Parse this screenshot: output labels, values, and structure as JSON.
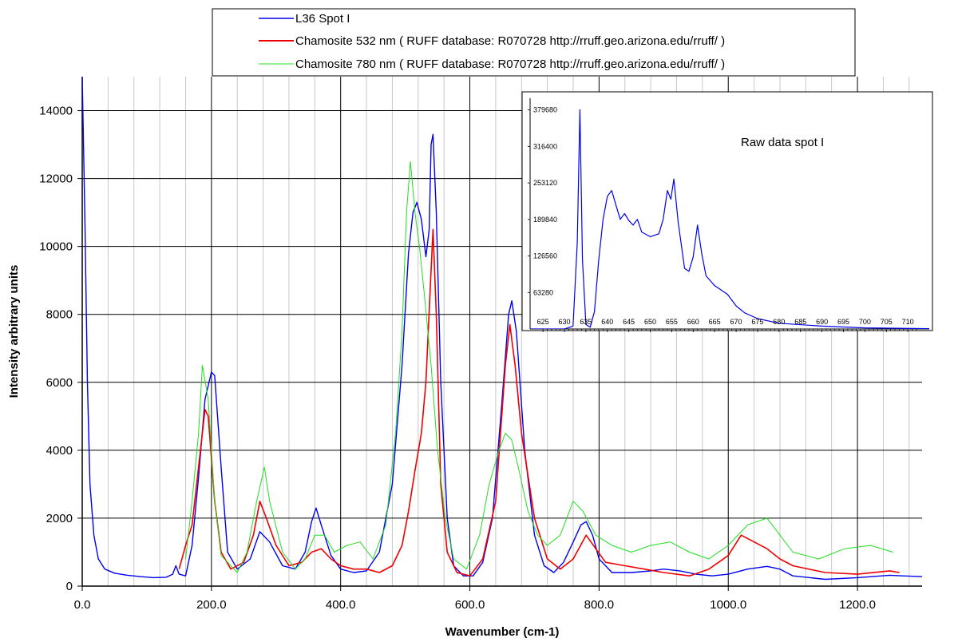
{
  "chart_data": [
    {
      "type": "line",
      "xlabel": "Wavenumber (cm-1)",
      "ylabel": "Intensity arbitrary units",
      "xlim": [
        0,
        1300
      ],
      "ylim": [
        0,
        15000
      ],
      "x_ticks": [
        0,
        200,
        400,
        600,
        800,
        1000,
        1200
      ],
      "x_tick_labels": [
        "0.0",
        "200.0",
        "400.0",
        "600.0",
        "800.0",
        "1000.0",
        "1200.0"
      ],
      "y_ticks": [
        0,
        2000,
        4000,
        6000,
        8000,
        10000,
        12000,
        14000
      ],
      "y_tick_labels": [
        "0",
        "2000",
        "4000",
        "6000",
        "8000",
        "10000",
        "12000",
        "14000"
      ],
      "grid": true,
      "legend_position": "top",
      "series": [
        {
          "name": "L36 Spot I",
          "color": "#0000ee",
          "points": [
            [
              0,
              15000
            ],
            [
              4,
              11000
            ],
            [
              8,
              6000
            ],
            [
              12,
              3000
            ],
            [
              18,
              1500
            ],
            [
              25,
              800
            ],
            [
              35,
              500
            ],
            [
              50,
              380
            ],
            [
              70,
              320
            ],
            [
              90,
              280
            ],
            [
              110,
              250
            ],
            [
              130,
              260
            ],
            [
              140,
              350
            ],
            [
              145,
              600
            ],
            [
              150,
              350
            ],
            [
              160,
              300
            ],
            [
              170,
              1200
            ],
            [
              180,
              3200
            ],
            [
              190,
              5500
            ],
            [
              200,
              6300
            ],
            [
              205,
              6200
            ],
            [
              215,
              3500
            ],
            [
              225,
              1000
            ],
            [
              240,
              500
            ],
            [
              260,
              800
            ],
            [
              275,
              1600
            ],
            [
              290,
              1300
            ],
            [
              310,
              600
            ],
            [
              330,
              500
            ],
            [
              345,
              1000
            ],
            [
              355,
              1900
            ],
            [
              362,
              2300
            ],
            [
              370,
              1800
            ],
            [
              385,
              900
            ],
            [
              400,
              500
            ],
            [
              420,
              400
            ],
            [
              440,
              450
            ],
            [
              460,
              1000
            ],
            [
              480,
              3000
            ],
            [
              495,
              6500
            ],
            [
              505,
              9800
            ],
            [
              512,
              11000
            ],
            [
              518,
              11300
            ],
            [
              525,
              10800
            ],
            [
              532,
              9700
            ],
            [
              537,
              10500
            ],
            [
              540,
              13000
            ],
            [
              543,
              13300
            ],
            [
              548,
              11000
            ],
            [
              555,
              6000
            ],
            [
              565,
              2000
            ],
            [
              575,
              600
            ],
            [
              590,
              300
            ],
            [
              605,
              300
            ],
            [
              620,
              700
            ],
            [
              635,
              2000
            ],
            [
              650,
              5500
            ],
            [
              660,
              8000
            ],
            [
              665,
              8400
            ],
            [
              672,
              7500
            ],
            [
              685,
              4000
            ],
            [
              700,
              1500
            ],
            [
              715,
              600
            ],
            [
              730,
              400
            ],
            [
              745,
              700
            ],
            [
              760,
              1300
            ],
            [
              772,
              1800
            ],
            [
              780,
              1900
            ],
            [
              790,
              1500
            ],
            [
              800,
              800
            ],
            [
              820,
              400
            ],
            [
              850,
              400
            ],
            [
              880,
              450
            ],
            [
              900,
              500
            ],
            [
              925,
              450
            ],
            [
              950,
              350
            ],
            [
              975,
              300
            ],
            [
              1000,
              350
            ],
            [
              1030,
              500
            ],
            [
              1060,
              580
            ],
            [
              1080,
              500
            ],
            [
              1100,
              300
            ],
            [
              1150,
              200
            ],
            [
              1200,
              250
            ],
            [
              1250,
              320
            ],
            [
              1270,
              300
            ],
            [
              1300,
              280
            ]
          ]
        },
        {
          "name": "Chamosite 532 nm ( RUFF database: R070728  http://rruff.geo.arizona.edu/rruff/ )",
          "color": "#ee0000",
          "points": [
            [
              150,
              500
            ],
            [
              160,
              1200
            ],
            [
              170,
              1800
            ],
            [
              180,
              3500
            ],
            [
              190,
              5200
            ],
            [
              195,
              5000
            ],
            [
              205,
              2500
            ],
            [
              215,
              1000
            ],
            [
              230,
              500
            ],
            [
              250,
              700
            ],
            [
              265,
              1500
            ],
            [
              275,
              2500
            ],
            [
              285,
              2000
            ],
            [
              300,
              1200
            ],
            [
              320,
              600
            ],
            [
              340,
              700
            ],
            [
              355,
              1000
            ],
            [
              370,
              1100
            ],
            [
              385,
              800
            ],
            [
              400,
              600
            ],
            [
              420,
              500
            ],
            [
              440,
              500
            ],
            [
              460,
              400
            ],
            [
              480,
              600
            ],
            [
              495,
              1200
            ],
            [
              505,
              2200
            ],
            [
              515,
              3400
            ],
            [
              525,
              4500
            ],
            [
              532,
              6000
            ],
            [
              538,
              8500
            ],
            [
              543,
              10500
            ],
            [
              548,
              8000
            ],
            [
              555,
              3000
            ],
            [
              565,
              1000
            ],
            [
              580,
              400
            ],
            [
              600,
              300
            ],
            [
              620,
              800
            ],
            [
              640,
              2500
            ],
            [
              655,
              6500
            ],
            [
              662,
              7700
            ],
            [
              670,
              6500
            ],
            [
              680,
              4500
            ],
            [
              700,
              2000
            ],
            [
              720,
              800
            ],
            [
              740,
              500
            ],
            [
              760,
              800
            ],
            [
              780,
              1500
            ],
            [
              795,
              1100
            ],
            [
              810,
              700
            ],
            [
              840,
              600
            ],
            [
              870,
              500
            ],
            [
              900,
              400
            ],
            [
              940,
              300
            ],
            [
              970,
              500
            ],
            [
              1000,
              900
            ],
            [
              1020,
              1500
            ],
            [
              1040,
              1300
            ],
            [
              1060,
              1100
            ],
            [
              1080,
              800
            ],
            [
              1100,
              600
            ],
            [
              1150,
              400
            ],
            [
              1200,
              350
            ],
            [
              1250,
              450
            ],
            [
              1265,
              400
            ]
          ]
        },
        {
          "name": "Chamosite 780 nm ( RUFF database: R070728  http://rruff.geo.arizona.edu/rruff/ )",
          "color": "#22dd22",
          "points": [
            [
              160,
              800
            ],
            [
              170,
              2500
            ],
            [
              180,
              4500
            ],
            [
              186,
              6500
            ],
            [
              195,
              5500
            ],
            [
              205,
              2500
            ],
            [
              215,
              900
            ],
            [
              240,
              400
            ],
            [
              255,
              1000
            ],
            [
              270,
              2500
            ],
            [
              282,
              3500
            ],
            [
              290,
              2500
            ],
            [
              310,
              1000
            ],
            [
              330,
              500
            ],
            [
              345,
              800
            ],
            [
              360,
              1500
            ],
            [
              375,
              1500
            ],
            [
              390,
              1000
            ],
            [
              410,
              1200
            ],
            [
              430,
              1300
            ],
            [
              450,
              800
            ],
            [
              470,
              1800
            ],
            [
              485,
              4500
            ],
            [
              495,
              7500
            ],
            [
              502,
              11000
            ],
            [
              508,
              12500
            ],
            [
              515,
              11000
            ],
            [
              522,
              10000
            ],
            [
              530,
              8500
            ],
            [
              540,
              6500
            ],
            [
              550,
              4000
            ],
            [
              562,
              2000
            ],
            [
              575,
              800
            ],
            [
              595,
              500
            ],
            [
              615,
              1500
            ],
            [
              630,
              3000
            ],
            [
              645,
              4000
            ],
            [
              655,
              4500
            ],
            [
              665,
              4300
            ],
            [
              675,
              3500
            ],
            [
              690,
              2200
            ],
            [
              705,
              1500
            ],
            [
              720,
              1200
            ],
            [
              740,
              1500
            ],
            [
              760,
              2500
            ],
            [
              775,
              2200
            ],
            [
              795,
              1500
            ],
            [
              820,
              1200
            ],
            [
              850,
              1000
            ],
            [
              880,
              1200
            ],
            [
              910,
              1300
            ],
            [
              940,
              1000
            ],
            [
              970,
              800
            ],
            [
              1000,
              1200
            ],
            [
              1030,
              1800
            ],
            [
              1060,
              2000
            ],
            [
              1080,
              1500
            ],
            [
              1100,
              1000
            ],
            [
              1140,
              800
            ],
            [
              1180,
              1100
            ],
            [
              1220,
              1200
            ],
            [
              1255,
              1000
            ]
          ]
        }
      ]
    },
    {
      "type": "line",
      "title": "Raw data spot I",
      "xlim": [
        622,
        715
      ],
      "ylim": [
        0,
        400000
      ],
      "x_ticks": [
        625,
        630,
        635,
        640,
        645,
        650,
        655,
        660,
        665,
        670,
        675,
        680,
        685,
        690,
        695,
        700,
        705,
        710
      ],
      "x_tick_labels": [
        "625",
        "630",
        "635",
        "640",
        "645",
        "650",
        "655",
        "660",
        "665",
        "670",
        "675",
        "680",
        "685",
        "690",
        "695",
        "700",
        "705",
        "710"
      ],
      "y_ticks": [
        63280,
        126560,
        189840,
        253120,
        316400,
        379680
      ],
      "y_tick_labels": [
        "63280",
        "126560",
        "189840",
        "253120",
        "316400",
        "379680"
      ],
      "grid": false,
      "series": [
        {
          "color": "#0000ee",
          "points": [
            [
              622,
              0
            ],
            [
              628,
              0
            ],
            [
              630,
              0
            ],
            [
              632,
              5000
            ],
            [
              633,
              150000
            ],
            [
              633.6,
              380000
            ],
            [
              634.2,
              120000
            ],
            [
              635,
              8000
            ],
            [
              636,
              3000
            ],
            [
              637,
              30000
            ],
            [
              638,
              120000
            ],
            [
              639,
              190000
            ],
            [
              640,
              230000
            ],
            [
              641,
              240000
            ],
            [
              642,
              215000
            ],
            [
              643,
              190000
            ],
            [
              644,
              200000
            ],
            [
              645,
              188000
            ],
            [
              646,
              180000
            ],
            [
              647,
              190000
            ],
            [
              648,
              168000
            ],
            [
              650,
              160000
            ],
            [
              652,
              165000
            ],
            [
              653,
              190000
            ],
            [
              654,
              240000
            ],
            [
              654.8,
              225000
            ],
            [
              655.5,
              260000
            ],
            [
              656.5,
              185000
            ],
            [
              658,
              105000
            ],
            [
              659,
              100000
            ],
            [
              660,
              125000
            ],
            [
              661,
              180000
            ],
            [
              662,
              130000
            ],
            [
              663,
              92000
            ],
            [
              665,
              75000
            ],
            [
              668,
              60000
            ],
            [
              670,
              40000
            ],
            [
              672,
              28000
            ],
            [
              675,
              18000
            ],
            [
              680,
              10000
            ],
            [
              690,
              5000
            ],
            [
              700,
              2000
            ],
            [
              715,
              500
            ]
          ]
        }
      ]
    }
  ]
}
